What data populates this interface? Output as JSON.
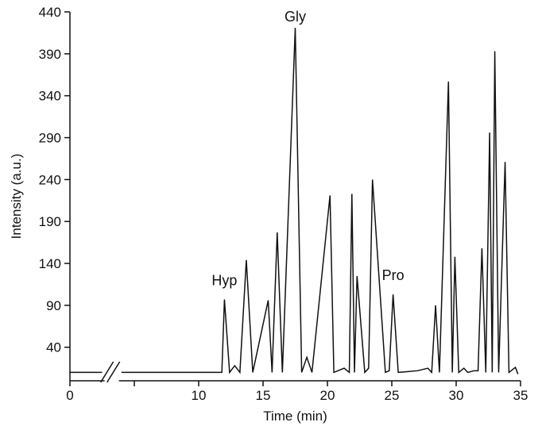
{
  "chart_data": {
    "type": "line",
    "title": "",
    "xlabel": "Time (min)",
    "ylabel": "Intensity (a.u.)",
    "xlim": [
      0,
      35
    ],
    "ylim": [
      0,
      440
    ],
    "x_ticks": [
      0,
      5,
      10,
      15,
      20,
      25,
      30,
      35
    ],
    "x_tick_labels": [
      "0",
      "",
      "10",
      "15",
      "20",
      "25",
      "30",
      "35"
    ],
    "y_ticks": [
      40,
      90,
      140,
      190,
      240,
      290,
      340,
      390,
      440
    ],
    "x_axis_break_between": [
      2.5,
      4.0
    ],
    "grid": false,
    "legend": "none",
    "line_color": "#111111",
    "series": [
      {
        "baseline_before_break": {
          "x": [
            0,
            2.5
          ],
          "y": [
            10,
            10
          ]
        },
        "x": [
          4.0,
          11.8,
          12.0,
          12.4,
          12.8,
          13.2,
          13.7,
          14.2,
          15.4,
          15.7,
          16.1,
          16.5,
          17.5,
          18.0,
          18.4,
          18.8,
          20.2,
          20.5,
          21.3,
          21.7,
          21.9,
          22.1,
          22.3,
          22.9,
          23.2,
          23.5,
          24.5,
          24.8,
          25.1,
          25.5,
          27.0,
          27.8,
          28.1,
          28.4,
          28.7,
          29.4,
          29.7,
          29.9,
          30.2,
          30.6,
          30.9,
          31.4,
          31.7,
          32.0,
          32.3,
          32.6,
          32.8,
          33.0,
          33.3,
          33.8,
          34.1,
          34.6,
          34.8
        ],
        "y": [
          10,
          10,
          97,
          10,
          18,
          10,
          144,
          10,
          96,
          10,
          177,
          10,
          421,
          10,
          28,
          10,
          221,
          10,
          15,
          10,
          223,
          10,
          125,
          10,
          15,
          240,
          10,
          12,
          103,
          10,
          12,
          15,
          10,
          90,
          10,
          357,
          10,
          148,
          10,
          15,
          10,
          12,
          12,
          158,
          10,
          296,
          10,
          393,
          10,
          261,
          10,
          16,
          8
        ]
      }
    ],
    "annotations": [
      {
        "text": "Gly",
        "x": 17.5
      },
      {
        "text": "Hyp",
        "x": 12.0
      },
      {
        "text": "Pro",
        "x": 25.1
      }
    ]
  }
}
